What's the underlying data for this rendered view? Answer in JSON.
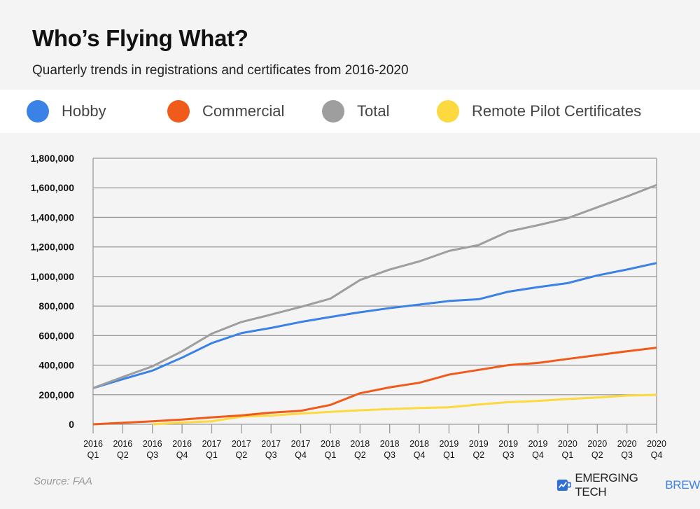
{
  "header": {
    "title": "Who’s Flying What?",
    "subtitle": "Quarterly trends in registrations and certificates from 2016-2020"
  },
  "footer": {
    "source": "Source: FAA",
    "brand_main": "Emerging Tech",
    "brand_accent": "Brew"
  },
  "chart_data": {
    "type": "line",
    "title": "Who’s Flying What?",
    "ylim": [
      0,
      1800000
    ],
    "yticks": [
      0,
      200000,
      400000,
      600000,
      800000,
      1000000,
      1200000,
      1400000,
      1600000,
      1800000
    ],
    "ytick_labels": [
      "0",
      "200,000",
      "400,000",
      "600,000",
      "800,000",
      "1,000,000",
      "1,200,000",
      "1,400,000",
      "1,600,000",
      "1,800,000"
    ],
    "grid": true,
    "legend_position": "top",
    "categories": [
      [
        "2016",
        "Q1"
      ],
      [
        "2016",
        "Q2"
      ],
      [
        "2016",
        "Q3"
      ],
      [
        "2016",
        "Q4"
      ],
      [
        "2017",
        "Q1"
      ],
      [
        "2017",
        "Q2"
      ],
      [
        "2017",
        "Q3"
      ],
      [
        "2017",
        "Q4"
      ],
      [
        "2018",
        "Q1"
      ],
      [
        "2018",
        "Q2"
      ],
      [
        "2018",
        "Q3"
      ],
      [
        "2018",
        "Q4"
      ],
      [
        "2019",
        "Q1"
      ],
      [
        "2019",
        "Q2"
      ],
      [
        "2019",
        "Q3"
      ],
      [
        "2019",
        "Q4"
      ],
      [
        "2020",
        "Q1"
      ],
      [
        "2020",
        "Q2"
      ],
      [
        "2020",
        "Q3"
      ],
      [
        "2020",
        "Q4"
      ]
    ],
    "series": [
      {
        "name": "Hobby",
        "color": "#3b82e6",
        "values": [
          245000,
          305000,
          363000,
          451000,
          549000,
          617000,
          652000,
          692000,
          726000,
          758000,
          786000,
          810000,
          834000,
          846000,
          897000,
          928000,
          955000,
          1007000,
          1047000,
          1091000
        ]
      },
      {
        "name": "Commercial",
        "color": "#f05a1a",
        "values": [
          0,
          10000,
          20000,
          32000,
          47000,
          60000,
          79000,
          91000,
          131000,
          210000,
          250000,
          281000,
          336000,
          368000,
          400000,
          415000,
          442000,
          468000,
          494000,
          518000
        ]
      },
      {
        "name": "Total",
        "color": "#9e9e9e",
        "values": [
          245000,
          320000,
          392000,
          494000,
          613000,
          692000,
          742000,
          794000,
          850000,
          976000,
          1047000,
          1102000,
          1173000,
          1213000,
          1304000,
          1347000,
          1394000,
          1468000,
          1541000,
          1619000
        ]
      },
      {
        "name": "Remote Pilot Certificates",
        "color": "#fcd93e",
        "values": [
          null,
          null,
          0,
          12000,
          20000,
          52000,
          59000,
          72000,
          84000,
          95000,
          103000,
          110000,
          115000,
          134000,
          150000,
          158000,
          171000,
          181000,
          194000,
          199000
        ]
      }
    ]
  }
}
